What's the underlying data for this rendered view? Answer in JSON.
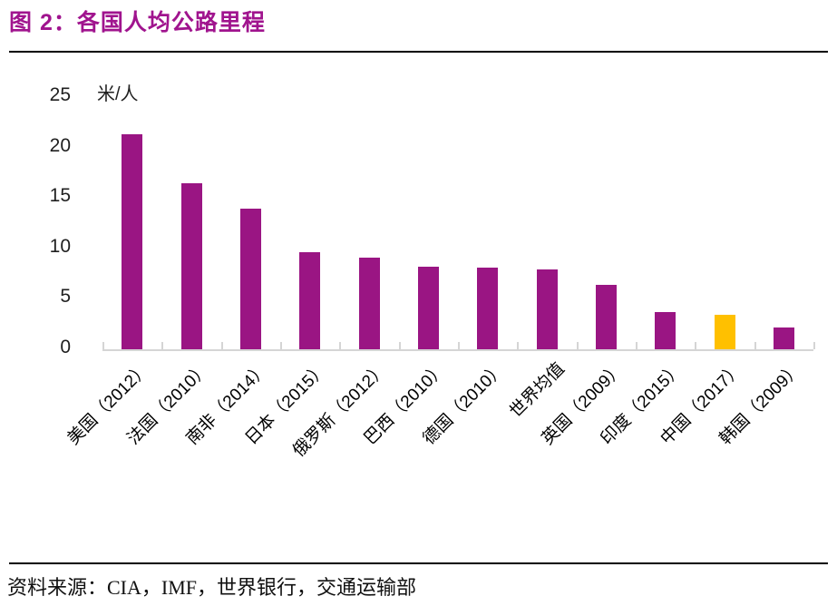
{
  "page": {
    "title": "图 2：各国人均公路里程",
    "source": "资料来源：CIA，IMF，世界银行，交通运输部"
  },
  "chart_data": {
    "type": "bar",
    "title": "各国人均公路里程",
    "unit_label": "米/人",
    "xlabel": "",
    "ylabel": "米/人",
    "categories": [
      "美国（2012）",
      "法国（2010）",
      "南非（2014）",
      "日本（2015）",
      "俄罗斯（2012）",
      "巴西（2010）",
      "德国（2010）",
      "世界均值",
      "英国（2009）",
      "印度（2015）",
      "中国（2017）",
      "韩国（2009）"
    ],
    "values": [
      21.3,
      16.5,
      13.9,
      9.6,
      9.1,
      8.2,
      8.1,
      7.9,
      6.4,
      3.7,
      3.4,
      2.2
    ],
    "ylim": [
      0,
      25
    ],
    "y_ticks": [
      0,
      5,
      10,
      15,
      20,
      25
    ],
    "grid": false,
    "legend": "none",
    "bar_color": "#9A1583",
    "highlight_color": "#FFC000",
    "highlight_index": 10,
    "highlight_category": "中国（2017）"
  },
  "colors": {
    "title": "#A0148E",
    "rule": "#000000",
    "axis_line": "#D5D5D5",
    "tick_label": "#1F1F1F"
  }
}
